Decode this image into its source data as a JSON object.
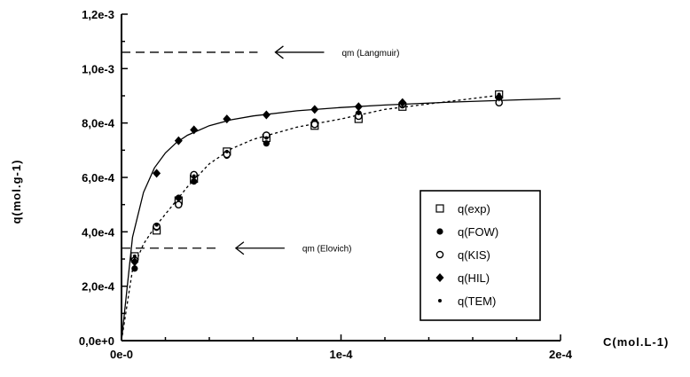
{
  "chart_data": {
    "type": "scatter",
    "xlabel": "C(mol.L-1)",
    "ylabel": "q(mol.g-1)",
    "xlim": [
      0,
      0.0002
    ],
    "ylim": [
      0,
      0.0012
    ],
    "x_ticks": [
      {
        "value": 0,
        "label": "0e-0"
      },
      {
        "value": 0.0001,
        "label": "1e-4"
      },
      {
        "value": 0.0002,
        "label": "2e-4"
      }
    ],
    "y_ticks": [
      {
        "value": 0,
        "label": "0,0e+0"
      },
      {
        "value": 0.0002,
        "label": "2,0e-4"
      },
      {
        "value": 0.0004,
        "label": "4,0e-4"
      },
      {
        "value": 0.0006,
        "label": "6,0e-4"
      },
      {
        "value": 0.0008,
        "label": "8,0e-4"
      },
      {
        "value": 0.001,
        "label": "1,0e-3"
      },
      {
        "value": 0.0012,
        "label": "1,2e-3"
      }
    ],
    "grid": false,
    "legend_position": "center-right",
    "series": [
      {
        "name": "q(exp)",
        "marker": "square",
        "x": [
          6e-06,
          1.6e-05,
          2.6e-05,
          3.3e-05,
          4.8e-05,
          6.6e-05,
          8.8e-05,
          0.000108,
          0.000128,
          0.000172
        ],
        "y": [
          0.00031,
          0.000405,
          0.000515,
          0.000595,
          0.000695,
          0.000745,
          0.00079,
          0.000815,
          0.00086,
          0.000905
        ]
      },
      {
        "name": "q(FOW)",
        "marker": "dot",
        "x": [
          6e-06,
          1.6e-05,
          2.6e-05,
          3.3e-05,
          4.8e-05,
          6.6e-05,
          8.8e-05,
          0.000108,
          0.000128,
          0.000172
        ],
        "y": [
          0.000265,
          0.000415,
          0.000525,
          0.000585,
          0.00068,
          0.000725,
          0.000805,
          0.000835,
          0.000865,
          0.00089
        ]
      },
      {
        "name": "q(KIS)",
        "marker": "circle",
        "x": [
          6e-06,
          1.6e-05,
          2.6e-05,
          3.3e-05,
          4.8e-05,
          6.6e-05,
          8.8e-05,
          0.000108,
          0.000128,
          0.000172
        ],
        "y": [
          0.000295,
          0.00042,
          0.0005,
          0.00061,
          0.000685,
          0.000755,
          0.000795,
          0.000825,
          0.00087,
          0.000875
        ]
      },
      {
        "name": "q(HIL)",
        "marker": "diamond",
        "x": [
          6e-06,
          1.6e-05,
          2.6e-05,
          3.3e-05,
          4.8e-05,
          6.6e-05,
          8.8e-05,
          0.000108,
          0.000128,
          0.000172
        ],
        "y": [
          0.00029,
          0.000615,
          0.000735,
          0.000775,
          0.000815,
          0.00083,
          0.00085,
          0.00086,
          0.000875,
          0.000895
        ]
      },
      {
        "name": "q(TEM)",
        "marker": "small-dot",
        "x": [
          6e-06,
          1.6e-05,
          2.6e-05,
          3.3e-05,
          4.8e-05,
          6.6e-05,
          8.8e-05,
          0.000108,
          0.000128,
          0.000172
        ],
        "y": [
          0.00031,
          0.000425,
          0.00052,
          0.000605,
          0.000695,
          0.000745,
          0.00081,
          0.000835,
          0.00088,
          0.000905
        ]
      }
    ],
    "fitted_curves": [
      {
        "style": "solid",
        "x": [
          0,
          5e-06,
          1e-05,
          1.5e-05,
          2e-05,
          2.5e-05,
          3e-05,
          4e-05,
          5e-05,
          6e-05,
          8e-05,
          0.0001,
          0.00012,
          0.00015,
          0.00018,
          0.0002
        ],
        "y": [
          0,
          0.00038,
          0.000545,
          0.000635,
          0.00069,
          0.000728,
          0.000755,
          0.00079,
          0.000812,
          0.000826,
          0.000845,
          0.000857,
          0.000866,
          0.000877,
          0.000885,
          0.00089
        ]
      },
      {
        "style": "dashed",
        "x": [
          0,
          5e-06,
          1e-05,
          1.5e-05,
          2e-05,
          2.5e-05,
          3e-05,
          4e-05,
          5e-05,
          6e-05,
          8e-05,
          0.0001,
          0.00012,
          0.00015,
          0.00017
        ],
        "y": [
          0,
          0.00026,
          0.000355,
          0.000415,
          0.000465,
          0.000515,
          0.000565,
          0.00065,
          0.000705,
          0.00074,
          0.000785,
          0.000815,
          0.00085,
          0.00088,
          0.0009
        ]
      }
    ],
    "reference_lines": [
      {
        "y": 0.00106,
        "x_end": 6.2e-05,
        "label": "qm (Langmuir)",
        "label_x": 9.8e-05
      },
      {
        "y": 0.00034,
        "x_end": 4.4e-05,
        "label": "qm (Elovich)",
        "label_x": 7.8e-05
      }
    ]
  }
}
